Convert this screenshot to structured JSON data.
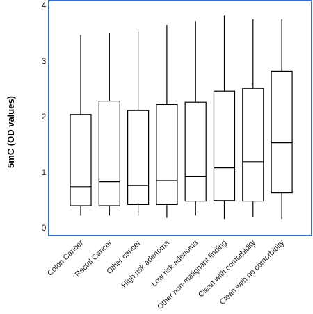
{
  "chart_data": {
    "type": "box",
    "ylabel": "5mC (OD values)",
    "xlabel": "",
    "ylim": [
      0,
      4
    ],
    "yticks": [
      0,
      1,
      2,
      3,
      4
    ],
    "grid": false,
    "legend": "none",
    "categories": [
      "Colon Cancer",
      "Rectal Cancer",
      "Other cancer",
      "High risk adenoma",
      "Low risk adenoma",
      "Other non-malignant finding",
      "Clean with comorbidity",
      "Clean with no comorbidity"
    ],
    "boxes": [
      {
        "min": 0.22,
        "q1": 0.4,
        "median": 0.74,
        "q3": 2.04,
        "max": 3.47
      },
      {
        "min": 0.22,
        "q1": 0.4,
        "median": 0.83,
        "q3": 2.28,
        "max": 3.5
      },
      {
        "min": 0.22,
        "q1": 0.42,
        "median": 0.76,
        "q3": 2.11,
        "max": 3.53
      },
      {
        "min": 0.18,
        "q1": 0.42,
        "median": 0.85,
        "q3": 2.22,
        "max": 3.65
      },
      {
        "min": 0.22,
        "q1": 0.48,
        "median": 0.92,
        "q3": 2.26,
        "max": 3.72
      },
      {
        "min": 0.16,
        "q1": 0.49,
        "median": 1.08,
        "q3": 2.46,
        "max": 3.82
      },
      {
        "min": 0.2,
        "q1": 0.48,
        "median": 1.19,
        "q3": 2.51,
        "max": 3.75
      },
      {
        "min": 0.16,
        "q1": 0.63,
        "median": 1.53,
        "q3": 2.82,
        "max": 3.75
      }
    ],
    "colors": {
      "frame": "#3a6fc4",
      "box": "#000000"
    }
  }
}
